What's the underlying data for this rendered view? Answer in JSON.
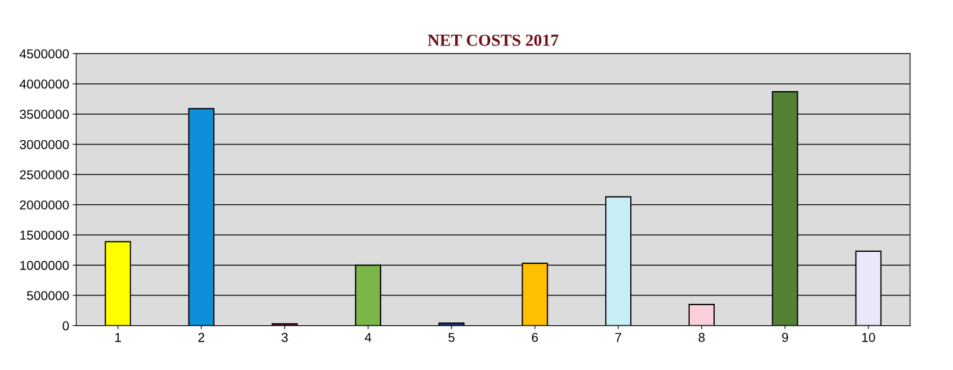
{
  "chart_data": {
    "type": "bar",
    "title": "NET COSTS 2017",
    "categories": [
      "1",
      "2",
      "3",
      "4",
      "5",
      "6",
      "7",
      "8",
      "9",
      "10"
    ],
    "values": [
      1390000,
      3590000,
      30000,
      1000000,
      40000,
      1030000,
      2130000,
      350000,
      3870000,
      1230000
    ],
    "colors": [
      "#ffff00",
      "#0d8fd9",
      "#8b1a3a",
      "#7ab648",
      "#1f3a7a",
      "#ffc000",
      "#c9eef7",
      "#f9d0d9",
      "#548235",
      "#e8e8fa"
    ],
    "ylim": [
      0,
      4500000
    ],
    "yticks": [
      0,
      500000,
      1000000,
      1500000,
      2000000,
      2500000,
      3000000,
      3500000,
      4000000,
      4500000
    ],
    "grid": "y",
    "legend": false
  }
}
